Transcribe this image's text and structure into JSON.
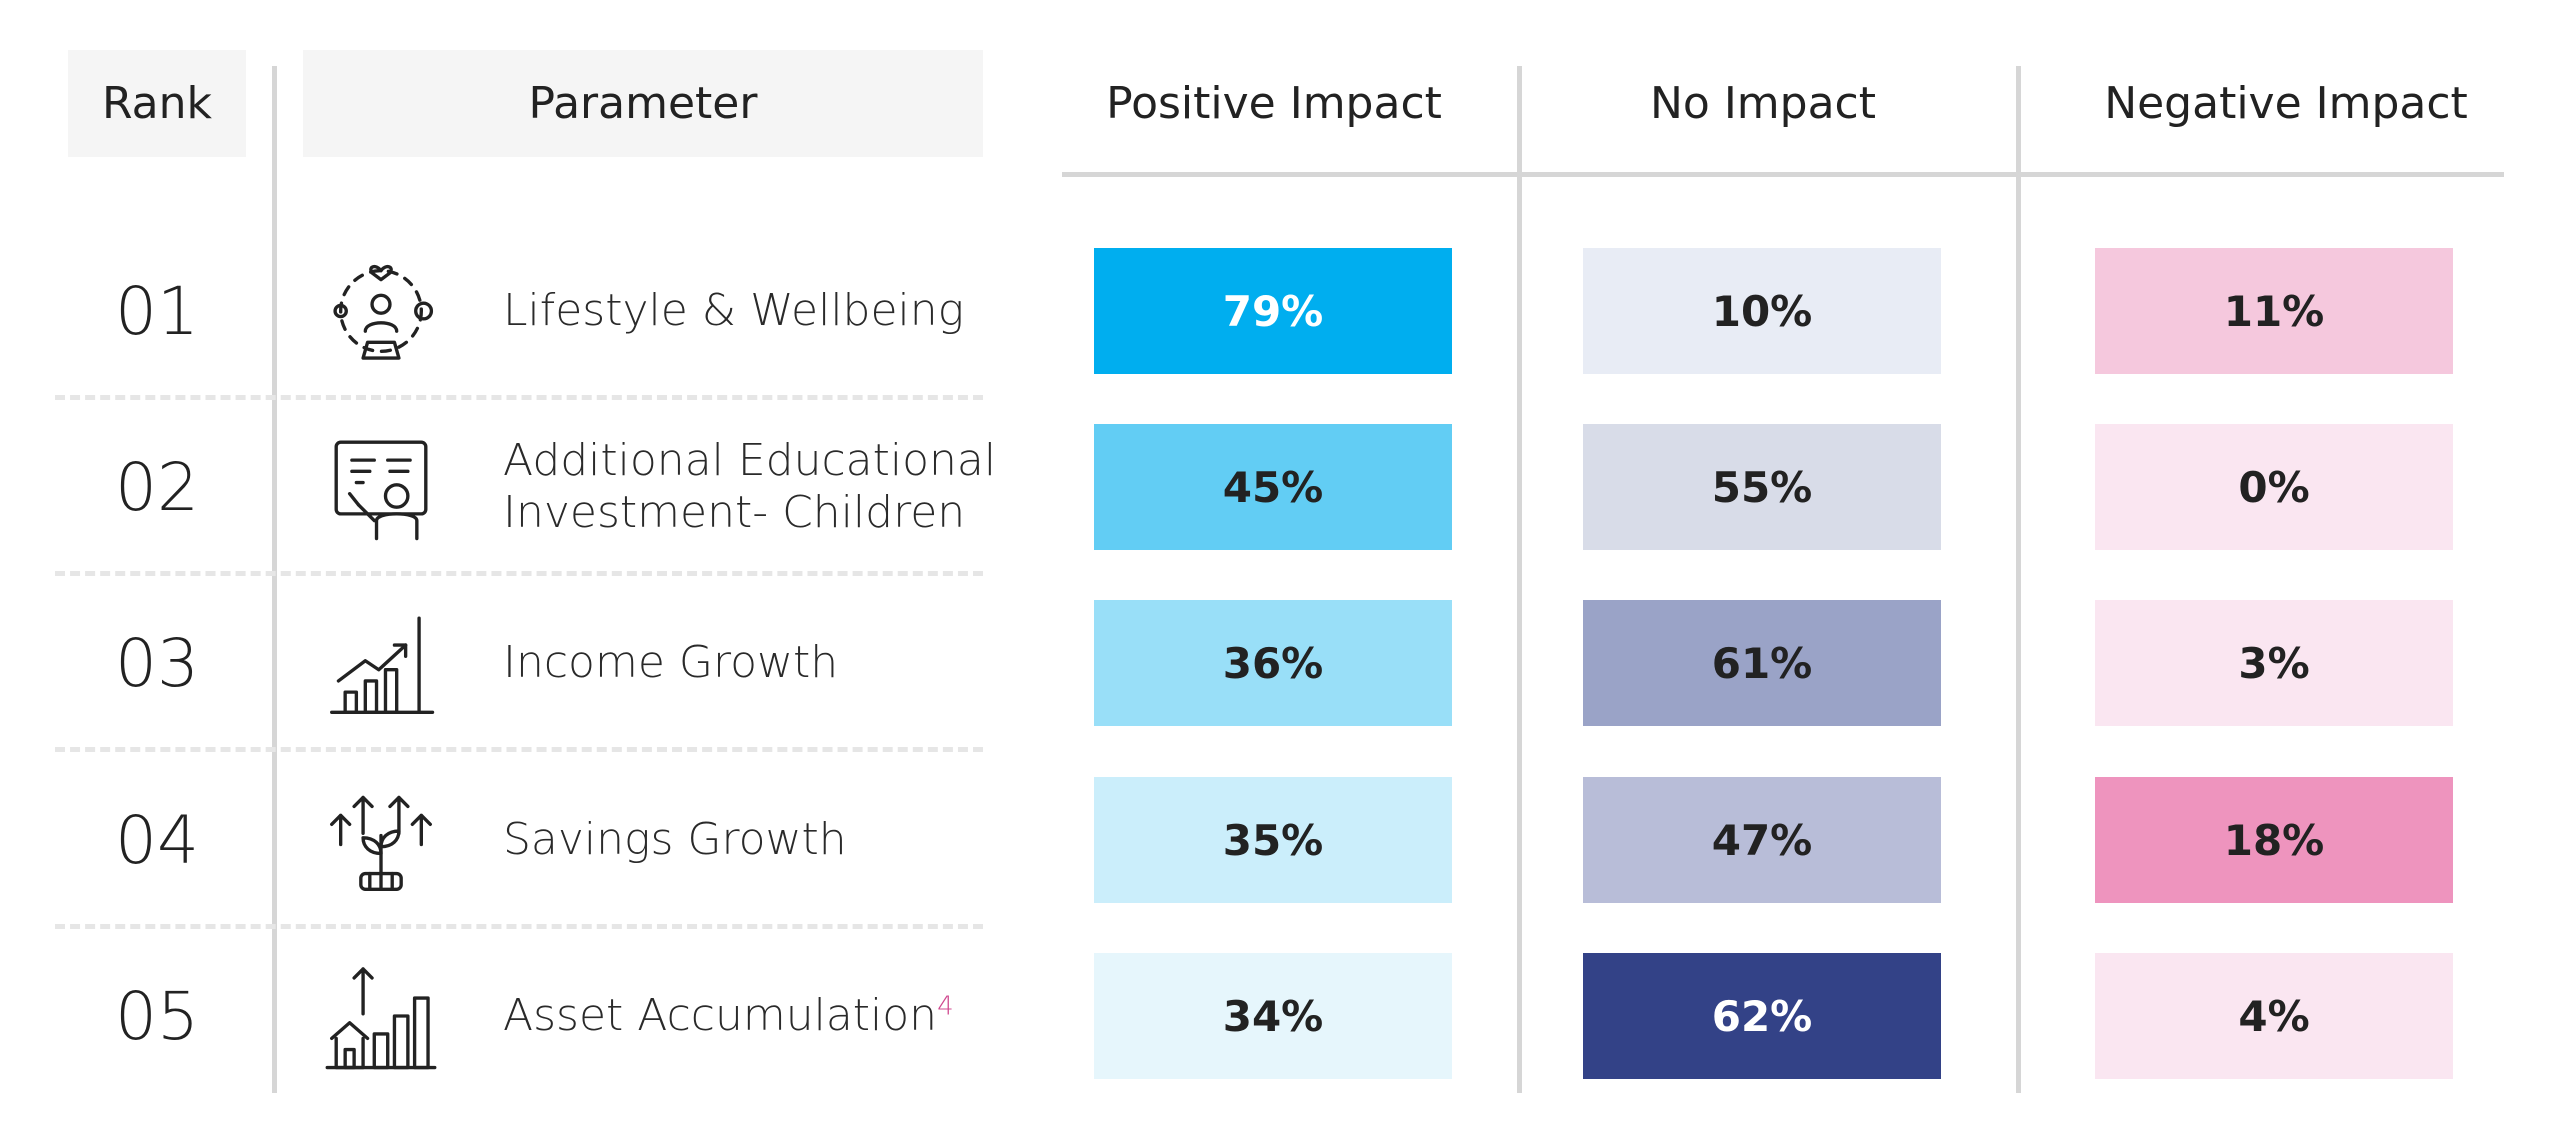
{
  "headers": {
    "rank": "Rank",
    "parameter": "Parameter",
    "positive": "Positive Impact",
    "no": "No Impact",
    "negative": "Negative Impact"
  },
  "rows": [
    {
      "rank": "01",
      "icon": "wellbeing-icon",
      "parameter_lines": [
        "Lifestyle & Wellbeing"
      ],
      "footnote": "",
      "positive": {
        "label": "79%",
        "color": "#00AEEF",
        "text_color": "#ffffff"
      },
      "no": {
        "label": "10%",
        "color": "#E8ECF5",
        "text_color": "#222222"
      },
      "negative": {
        "label": "11%",
        "color": "#F5C8DD",
        "text_color": "#222222"
      }
    },
    {
      "rank": "02",
      "icon": "education-icon",
      "parameter_lines": [
        "Additional Educational",
        "Investment- Children"
      ],
      "footnote": "",
      "positive": {
        "label": "45%",
        "color": "#62CDF4",
        "text_color": "#222222"
      },
      "no": {
        "label": "55%",
        "color": "#D8DCE8",
        "text_color": "#222222"
      },
      "negative": {
        "label": "0%",
        "color": "#FAE6F1",
        "text_color": "#222222"
      }
    },
    {
      "rank": "03",
      "icon": "income-growth-icon",
      "parameter_lines": [
        "Income Growth"
      ],
      "footnote": "",
      "positive": {
        "label": "36%",
        "color": "#99DFF8",
        "text_color": "#222222"
      },
      "no": {
        "label": "61%",
        "color": "#9AA3C7",
        "text_color": "#222222"
      },
      "negative": {
        "label": "3%",
        "color": "#FAE6F1",
        "text_color": "#222222"
      }
    },
    {
      "rank": "04",
      "icon": "savings-growth-icon",
      "parameter_lines": [
        "Savings Growth"
      ],
      "footnote": "",
      "positive": {
        "label": "35%",
        "color": "#CBEEFB",
        "text_color": "#222222"
      },
      "no": {
        "label": "47%",
        "color": "#B8BDD8",
        "text_color": "#222222"
      },
      "negative": {
        "label": "18%",
        "color": "#EE94BE",
        "text_color": "#222222"
      }
    },
    {
      "rank": "05",
      "icon": "asset-accumulation-icon",
      "parameter_lines": [
        "Asset Accumulation"
      ],
      "footnote": "4",
      "positive": {
        "label": "34%",
        "color": "#E6F6FC",
        "text_color": "#222222"
      },
      "no": {
        "label": "62%",
        "color": "#334287",
        "text_color": "#ffffff"
      },
      "negative": {
        "label": "4%",
        "color": "#FAE6F1",
        "text_color": "#222222"
      }
    }
  ],
  "chart_data": {
    "type": "table",
    "columns": [
      "Rank",
      "Parameter",
      "Positive Impact",
      "No Impact",
      "Negative Impact"
    ],
    "categories": [
      "Lifestyle & Wellbeing",
      "Additional Educational Investment- Children",
      "Income Growth",
      "Savings Growth",
      "Asset Accumulation"
    ],
    "series": [
      {
        "name": "Positive Impact",
        "values": [
          79,
          45,
          36,
          35,
          34
        ]
      },
      {
        "name": "No Impact",
        "values": [
          10,
          55,
          61,
          47,
          62
        ]
      },
      {
        "name": "Negative Impact",
        "values": [
          11,
          0,
          3,
          18,
          4
        ]
      }
    ]
  }
}
